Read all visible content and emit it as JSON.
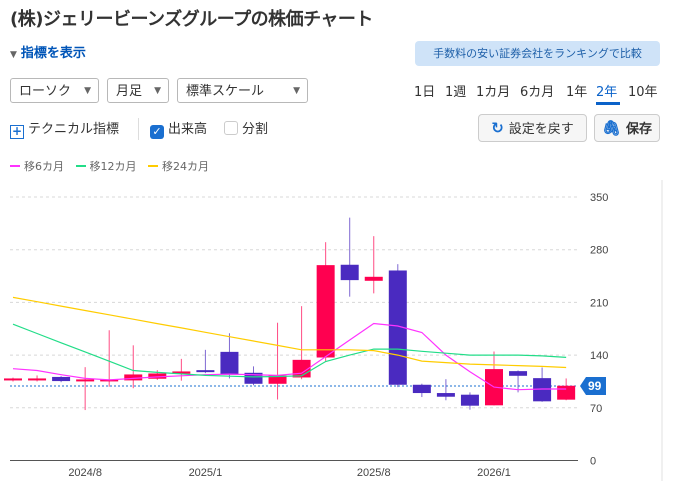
{
  "title": "(株)ジェリービーンズグループの株価チャート",
  "indicator_toggle": "指標を表示",
  "promo_badge": "手数料の安い証券会社をランキングで比較",
  "selects": {
    "type": "ローソク",
    "interval": "月足",
    "scale": "標準スケール"
  },
  "periods": [
    "1日",
    "1週",
    "1カ月",
    "6カ月",
    "1年",
    "2年",
    "10年"
  ],
  "active_period": "2年",
  "options": {
    "technical": "テクニカル指標",
    "volume": "出来高",
    "volume_checked": true,
    "split": "分割",
    "split_checked": false
  },
  "buttons": {
    "reset": "設定を戻す",
    "save": "保存"
  },
  "legend": [
    {
      "label": "移6カ月",
      "color": "#ff33ff"
    },
    {
      "label": "移12カ月",
      "color": "#22dd88"
    },
    {
      "label": "移24カ月",
      "color": "#ffcc00"
    }
  ],
  "colors": {
    "up": "#ff0050",
    "down": "#4a2ac0",
    "price_line": "#1a6fd0"
  },
  "chart_data": {
    "type": "candlestick",
    "ylim": [
      0,
      350
    ],
    "yticks": [
      0,
      70,
      140,
      210,
      280,
      350
    ],
    "xlabels": [
      {
        "index": 3,
        "label": "2024/8"
      },
      {
        "index": 8,
        "label": "2025/1"
      },
      {
        "index": 15,
        "label": "2025/8"
      },
      {
        "index": 20,
        "label": "2026/1"
      }
    ],
    "current_price": 99,
    "candles": [
      {
        "o": 107,
        "h": 110,
        "l": 105,
        "c": 109
      },
      {
        "o": 108,
        "h": 113,
        "l": 105,
        "c": 109
      },
      {
        "o": 111,
        "h": 112,
        "l": 104,
        "c": 105.5
      },
      {
        "o": 105.5,
        "h": 124,
        "l": 67,
        "c": 107.7
      },
      {
        "o": 105.5,
        "h": 173,
        "l": 98,
        "c": 107.7
      },
      {
        "o": 106.4,
        "h": 153,
        "l": 96,
        "c": 114.3
      },
      {
        "o": 108.6,
        "h": 120,
        "l": 107,
        "c": 115.6
      },
      {
        "o": 115.2,
        "h": 135,
        "l": 106,
        "c": 118.3
      },
      {
        "o": 120,
        "h": 147,
        "l": 116,
        "c": 117.4
      },
      {
        "o": 144.3,
        "h": 169,
        "l": 109,
        "c": 113.9
      },
      {
        "o": 116.5,
        "h": 125,
        "l": 100,
        "c": 101.9
      },
      {
        "o": 101.9,
        "h": 183,
        "l": 81,
        "c": 113
      },
      {
        "o": 110.3,
        "h": 205,
        "l": 108,
        "c": 133.7
      },
      {
        "o": 136.8,
        "h": 290,
        "l": 131.5,
        "c": 259.5
      },
      {
        "o": 260,
        "h": 322.6,
        "l": 217.6,
        "c": 239.6
      },
      {
        "o": 238.7,
        "h": 298,
        "l": 222,
        "c": 244
      },
      {
        "o": 252.4,
        "h": 260.8,
        "l": 97.5,
        "c": 100.6
      },
      {
        "o": 100.6,
        "h": 102,
        "l": 84.3,
        "c": 89.6
      },
      {
        "o": 89.6,
        "h": 108,
        "l": 80,
        "c": 84.7
      },
      {
        "o": 87.4,
        "h": 90.5,
        "l": 67.5,
        "c": 72.8
      },
      {
        "o": 73.3,
        "h": 144.7,
        "l": 73,
        "c": 121.4
      },
      {
        "o": 118.7,
        "h": 119.6,
        "l": 90.5,
        "c": 112.5
      },
      {
        "o": 109.4,
        "h": 123.6,
        "l": 78,
        "c": 78.6
      },
      {
        "o": 80.8,
        "h": 109,
        "l": 80,
        "c": 99.3
      }
    ],
    "ma6": [
      122,
      119.6,
      114,
      109,
      107,
      109,
      111,
      112.5,
      114,
      114.7,
      114,
      113,
      116,
      138,
      160,
      182,
      178.7,
      170,
      140,
      118,
      97.5,
      94,
      95,
      95
    ],
    "ma12": [
      181,
      168.7,
      156.4,
      144.2,
      131.9,
      119.6,
      117,
      115,
      113,
      112,
      111,
      111.6,
      112.5,
      131.5,
      140,
      148,
      148,
      145,
      142.5,
      140,
      140,
      140,
      139,
      137
    ],
    "ma24": [
      216.7,
      210.9,
      205.1,
      199.3,
      193.5,
      187.7,
      181.9,
      176.1,
      170.3,
      164.5,
      158.7,
      152.9,
      147,
      147,
      147,
      146,
      140,
      132,
      130,
      128,
      127,
      126,
      125,
      123.5
    ]
  }
}
